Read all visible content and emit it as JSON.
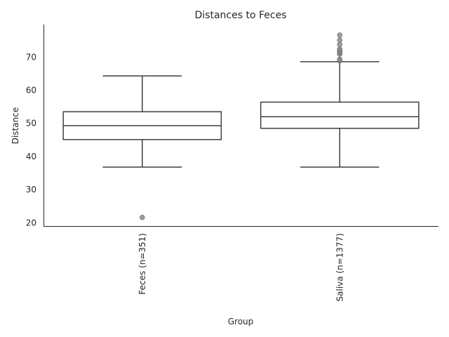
{
  "chart_data": {
    "type": "box",
    "title": "Distances to Feces",
    "xlabel": "Group",
    "ylabel": "Distance",
    "ylim": [
      19,
      79.8
    ],
    "yticks": [
      20,
      30,
      40,
      50,
      60,
      70
    ],
    "grid": false,
    "categories": [
      "Feces (n=351)",
      "Saliva (n=1377)"
    ],
    "boxes": [
      {
        "label": "Feces (n=351)",
        "whisker_low": 36.8,
        "q1": 45.1,
        "median": 49.3,
        "q3": 53.5,
        "whisker_high": 64.3,
        "outliers": [
          21.6
        ]
      },
      {
        "label": "Saliva (n=1377)",
        "whisker_low": 36.8,
        "q1": 48.5,
        "median": 52.0,
        "q3": 56.4,
        "whisker_high": 68.6,
        "outliers": [
          68.9,
          69.1,
          69.3,
          70.9,
          71.3,
          71.6,
          72.0,
          72.4,
          73.8,
          75.1,
          76.6
        ]
      }
    ],
    "colors": {
      "box_line": "#3f3f3f",
      "outlier": "#8c8c8c",
      "axis": "#262626"
    }
  }
}
